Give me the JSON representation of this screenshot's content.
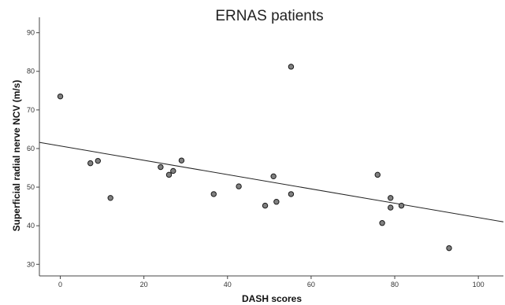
{
  "chart_data": {
    "type": "scatter",
    "title": "ERNAS patients",
    "xlabel": "DASH scores",
    "ylabel": "Superficial radial nerve NCV (m/s)",
    "xlim": [
      -5,
      106
    ],
    "ylim": [
      27,
      94
    ],
    "x_ticks": [
      "0",
      "20",
      "40",
      "60",
      "80",
      "100"
    ],
    "x_tick_values": [
      0,
      20,
      40,
      60,
      80,
      100
    ],
    "y_ticks": [
      "30",
      "40",
      "50",
      "60",
      "70",
      "80",
      "90"
    ],
    "y_tick_values": [
      30,
      40,
      50,
      60,
      70,
      80,
      90
    ],
    "grid": false,
    "legend": "none",
    "marker_color": "#808080",
    "line_color": "#222222",
    "points": [
      {
        "x": 0,
        "y": 73.5
      },
      {
        "x": 7.2,
        "y": 56.2
      },
      {
        "x": 9,
        "y": 56.8
      },
      {
        "x": 12,
        "y": 47.2
      },
      {
        "x": 24,
        "y": 55.2
      },
      {
        "x": 26,
        "y": 53.2
      },
      {
        "x": 27,
        "y": 54.2
      },
      {
        "x": 29,
        "y": 56.9
      },
      {
        "x": 36.7,
        "y": 48.2
      },
      {
        "x": 42.7,
        "y": 50.2
      },
      {
        "x": 49,
        "y": 45.2
      },
      {
        "x": 51,
        "y": 52.8
      },
      {
        "x": 51.7,
        "y": 46.2
      },
      {
        "x": 55.2,
        "y": 81.2
      },
      {
        "x": 55.2,
        "y": 48.2
      },
      {
        "x": 75.9,
        "y": 53.2
      },
      {
        "x": 77,
        "y": 40.7
      },
      {
        "x": 79,
        "y": 47.2
      },
      {
        "x": 79,
        "y": 44.7
      },
      {
        "x": 81.6,
        "y": 45.2
      },
      {
        "x": 93,
        "y": 34.2
      }
    ],
    "fit_line": {
      "x": [
        -5,
        106
      ],
      "y": [
        61.6,
        41.0
      ]
    }
  }
}
